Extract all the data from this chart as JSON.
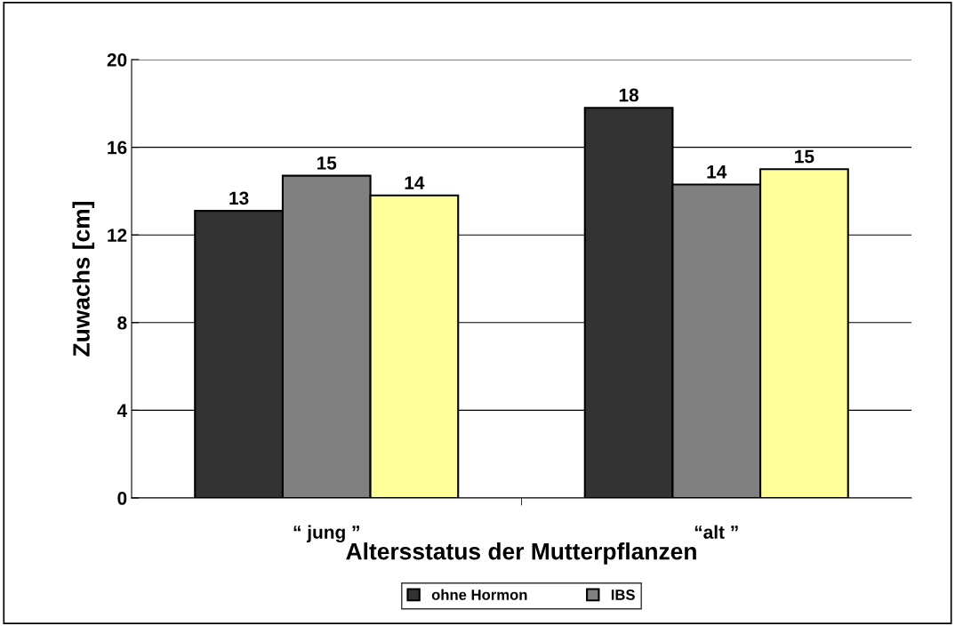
{
  "chart_data": {
    "type": "bar",
    "xlabel": "Altersstatus der Mutterpflanzen",
    "ylabel": "Zuwachs [cm]",
    "categories": [
      "“ jung ”",
      "“alt ”"
    ],
    "series": [
      {
        "name": "ohne Hormon",
        "color": "#333333",
        "values": [
          13.1,
          17.8
        ],
        "value_labels": [
          "13",
          "18"
        ]
      },
      {
        "name": "IBS",
        "color": "#808080",
        "values": [
          14.7,
          14.3
        ],
        "value_labels": [
          "15",
          "14"
        ]
      },
      {
        "color": "#ffff99",
        "values": [
          13.8,
          15.0
        ],
        "value_labels": [
          "14",
          "15"
        ]
      }
    ],
    "ylim": [
      0,
      20
    ],
    "yticks": [
      0,
      4,
      8,
      12,
      16,
      20
    ],
    "grid": "y",
    "legend": "bottom"
  }
}
